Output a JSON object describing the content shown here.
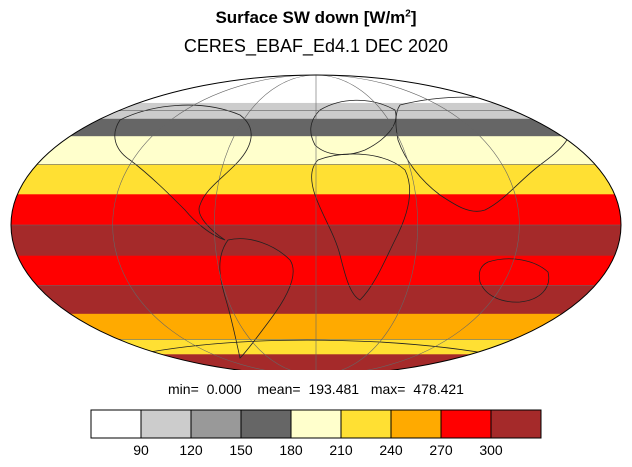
{
  "title": "Surface SW down [W/m",
  "title_sup": "2",
  "title_close": "]",
  "subtitle": "CERES_EBAF_Ed4.1 DEC 2020",
  "stats": {
    "min_label": "min=",
    "min_value": "0.000",
    "mean_label": "mean=",
    "mean_value": "193.481",
    "max_label": "max=",
    "max_value": "478.421"
  },
  "colorbar": {
    "colors": [
      "#ffffff",
      "#cccccc",
      "#999999",
      "#666666",
      "#ffffcc",
      "#ffe033",
      "#ffaa00",
      "#ff0000",
      "#a52a2a"
    ],
    "ticks": [
      "90",
      "120",
      "150",
      "180",
      "210",
      "240",
      "270",
      "300"
    ]
  },
  "map": {
    "projection": "mollweide",
    "latitude_bands": [
      {
        "lat_from": 90,
        "lat_to": 65,
        "color_index": 0
      },
      {
        "lat_from": 65,
        "lat_to": 55,
        "color_index": 1
      },
      {
        "lat_from": 55,
        "lat_to": 45,
        "color_index": 3
      },
      {
        "lat_from": 45,
        "lat_to": 30,
        "color_index": 4
      },
      {
        "lat_from": 30,
        "lat_to": 15,
        "color_index": 5
      },
      {
        "lat_from": 15,
        "lat_to": 0,
        "color_index": 7
      },
      {
        "lat_from": 0,
        "lat_to": -15,
        "color_index": 8
      },
      {
        "lat_from": -15,
        "lat_to": -30,
        "color_index": 7
      },
      {
        "lat_from": -30,
        "lat_to": -45,
        "color_index": 8
      },
      {
        "lat_from": -45,
        "lat_to": -60,
        "color_index": 6
      },
      {
        "lat_from": -60,
        "lat_to": -70,
        "color_index": 5
      },
      {
        "lat_from": -70,
        "lat_to": -90,
        "color_index": 8
      }
    ]
  }
}
